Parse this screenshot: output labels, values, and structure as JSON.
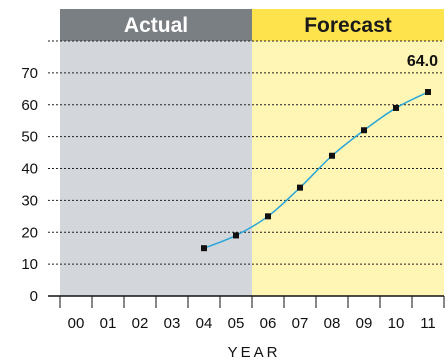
{
  "chart_data": {
    "type": "line",
    "title": "",
    "xlabel": "YEAR",
    "ylabel": "",
    "x": [
      "00",
      "01",
      "02",
      "03",
      "04",
      "05",
      "06",
      "07",
      "08",
      "09",
      "10",
      "11"
    ],
    "xlim": [
      "00",
      "11"
    ],
    "ylim": [
      0,
      80
    ],
    "yticks": [
      "0",
      "10",
      "20",
      "30",
      "40",
      "50",
      "60",
      "70"
    ],
    "grid": true,
    "legend": "none",
    "bands": [
      {
        "label": "Actual",
        "from": "00",
        "to": "05",
        "header_color": "#7a7f84",
        "fill_color": "#d3d7db",
        "text_color": "#ffffff"
      },
      {
        "label": "Forecast",
        "from": "06",
        "to": "11",
        "header_color": "#ffe34d",
        "fill_color": "#fff5b5",
        "text_color": "#1a1a1a"
      }
    ],
    "series": [
      {
        "color": "#2aa6d8",
        "marker_color": "#111111",
        "points": [
          {
            "x": "04",
            "y": 15
          },
          {
            "x": "05",
            "y": 19
          },
          {
            "x": "06",
            "y": 25
          },
          {
            "x": "07",
            "y": 34
          },
          {
            "x": "08",
            "y": 44
          },
          {
            "x": "09",
            "y": 52
          },
          {
            "x": "10",
            "y": 59
          },
          {
            "x": "11",
            "y": 64
          }
        ]
      }
    ],
    "annotations": [
      {
        "text": "64.0",
        "x": "11",
        "y": 64
      }
    ]
  }
}
